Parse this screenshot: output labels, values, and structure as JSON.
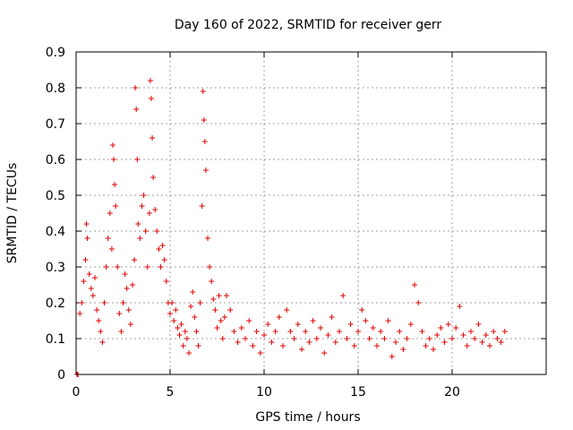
{
  "chart_data": {
    "type": "scatter",
    "title": "Day 160 of 2022, SRMTID for receiver gerr",
    "xlabel": "GPS time / hours",
    "ylabel": "SRMTID / TECUs",
    "xlim": [
      0,
      25
    ],
    "ylim": [
      0,
      0.9
    ],
    "xticks": [
      0,
      5,
      10,
      15,
      20
    ],
    "xtick_labels": [
      "0",
      "5",
      "10",
      "15",
      "20"
    ],
    "yticks": [
      0,
      0.1,
      0.2,
      0.3,
      0.4,
      0.5,
      0.6,
      0.7,
      0.8,
      0.9
    ],
    "ytick_labels": [
      "0",
      "0.1",
      "0.2",
      "0.3",
      "0.4",
      "0.5",
      "0.6",
      "0.7",
      "0.8",
      "0.9"
    ],
    "grid": true,
    "marker": "+",
    "color": "#e00000",
    "series": [
      {
        "name": "SRMTID",
        "points": [
          [
            0.05,
            0.0
          ],
          [
            0.1,
            0.0
          ],
          [
            0.2,
            0.17
          ],
          [
            0.3,
            0.2
          ],
          [
            0.4,
            0.26
          ],
          [
            0.5,
            0.32
          ],
          [
            0.55,
            0.42
          ],
          [
            0.6,
            0.38
          ],
          [
            0.7,
            0.28
          ],
          [
            0.8,
            0.24
          ],
          [
            0.9,
            0.22
          ],
          [
            1.0,
            0.27
          ],
          [
            1.1,
            0.18
          ],
          [
            1.2,
            0.15
          ],
          [
            1.3,
            0.12
          ],
          [
            1.4,
            0.09
          ],
          [
            1.5,
            0.2
          ],
          [
            1.6,
            0.3
          ],
          [
            1.7,
            0.38
          ],
          [
            1.8,
            0.45
          ],
          [
            1.9,
            0.35
          ],
          [
            1.95,
            0.64
          ],
          [
            2.0,
            0.6
          ],
          [
            2.05,
            0.53
          ],
          [
            2.1,
            0.47
          ],
          [
            2.2,
            0.3
          ],
          [
            2.3,
            0.17
          ],
          [
            2.4,
            0.12
          ],
          [
            2.5,
            0.2
          ],
          [
            2.6,
            0.28
          ],
          [
            2.7,
            0.24
          ],
          [
            2.8,
            0.18
          ],
          [
            2.9,
            0.14
          ],
          [
            3.0,
            0.25
          ],
          [
            3.1,
            0.32
          ],
          [
            3.15,
            0.8
          ],
          [
            3.2,
            0.74
          ],
          [
            3.25,
            0.6
          ],
          [
            3.3,
            0.42
          ],
          [
            3.4,
            0.38
          ],
          [
            3.5,
            0.47
          ],
          [
            3.6,
            0.5
          ],
          [
            3.7,
            0.4
          ],
          [
            3.8,
            0.3
          ],
          [
            3.9,
            0.45
          ],
          [
            3.95,
            0.82
          ],
          [
            4.0,
            0.77
          ],
          [
            4.05,
            0.66
          ],
          [
            4.1,
            0.55
          ],
          [
            4.2,
            0.46
          ],
          [
            4.3,
            0.4
          ],
          [
            4.4,
            0.35
          ],
          [
            4.5,
            0.3
          ],
          [
            4.6,
            0.36
          ],
          [
            4.7,
            0.32
          ],
          [
            4.8,
            0.26
          ],
          [
            4.9,
            0.2
          ],
          [
            5.0,
            0.17
          ],
          [
            5.1,
            0.2
          ],
          [
            5.2,
            0.15
          ],
          [
            5.3,
            0.18
          ],
          [
            5.4,
            0.13
          ],
          [
            5.5,
            0.11
          ],
          [
            5.6,
            0.14
          ],
          [
            5.7,
            0.08
          ],
          [
            5.8,
            0.12
          ],
          [
            5.9,
            0.1
          ],
          [
            6.0,
            0.06
          ],
          [
            6.1,
            0.19
          ],
          [
            6.2,
            0.23
          ],
          [
            6.3,
            0.16
          ],
          [
            6.4,
            0.12
          ],
          [
            6.5,
            0.08
          ],
          [
            6.6,
            0.2
          ],
          [
            6.7,
            0.47
          ],
          [
            6.75,
            0.79
          ],
          [
            6.8,
            0.71
          ],
          [
            6.85,
            0.65
          ],
          [
            6.9,
            0.57
          ],
          [
            7.0,
            0.38
          ],
          [
            7.1,
            0.3
          ],
          [
            7.2,
            0.26
          ],
          [
            7.3,
            0.21
          ],
          [
            7.4,
            0.18
          ],
          [
            7.5,
            0.13
          ],
          [
            7.6,
            0.22
          ],
          [
            7.7,
            0.15
          ],
          [
            7.8,
            0.1
          ],
          [
            7.9,
            0.16
          ],
          [
            8.0,
            0.22
          ],
          [
            8.2,
            0.18
          ],
          [
            8.4,
            0.12
          ],
          [
            8.6,
            0.09
          ],
          [
            8.8,
            0.13
          ],
          [
            9.0,
            0.1
          ],
          [
            9.2,
            0.15
          ],
          [
            9.4,
            0.08
          ],
          [
            9.6,
            0.12
          ],
          [
            9.8,
            0.06
          ],
          [
            10.0,
            0.11
          ],
          [
            10.2,
            0.14
          ],
          [
            10.4,
            0.09
          ],
          [
            10.6,
            0.12
          ],
          [
            10.8,
            0.16
          ],
          [
            11.0,
            0.08
          ],
          [
            11.2,
            0.18
          ],
          [
            11.4,
            0.12
          ],
          [
            11.6,
            0.1
          ],
          [
            11.8,
            0.14
          ],
          [
            12.0,
            0.07
          ],
          [
            12.2,
            0.12
          ],
          [
            12.4,
            0.09
          ],
          [
            12.6,
            0.15
          ],
          [
            12.8,
            0.1
          ],
          [
            13.0,
            0.13
          ],
          [
            13.2,
            0.06
          ],
          [
            13.4,
            0.11
          ],
          [
            13.6,
            0.16
          ],
          [
            13.8,
            0.09
          ],
          [
            14.0,
            0.12
          ],
          [
            14.2,
            0.22
          ],
          [
            14.4,
            0.1
          ],
          [
            14.6,
            0.14
          ],
          [
            14.8,
            0.08
          ],
          [
            15.0,
            0.12
          ],
          [
            15.2,
            0.18
          ],
          [
            15.4,
            0.15
          ],
          [
            15.6,
            0.1
          ],
          [
            15.8,
            0.13
          ],
          [
            16.0,
            0.08
          ],
          [
            16.2,
            0.12
          ],
          [
            16.4,
            0.1
          ],
          [
            16.6,
            0.15
          ],
          [
            16.8,
            0.05
          ],
          [
            17.0,
            0.09
          ],
          [
            17.2,
            0.12
          ],
          [
            17.4,
            0.07
          ],
          [
            17.6,
            0.1
          ],
          [
            17.8,
            0.14
          ],
          [
            18.0,
            0.25
          ],
          [
            18.2,
            0.2
          ],
          [
            18.4,
            0.12
          ],
          [
            18.6,
            0.08
          ],
          [
            18.8,
            0.1
          ],
          [
            19.0,
            0.07
          ],
          [
            19.2,
            0.11
          ],
          [
            19.4,
            0.13
          ],
          [
            19.6,
            0.09
          ],
          [
            19.8,
            0.14
          ],
          [
            20.0,
            0.1
          ],
          [
            20.2,
            0.13
          ],
          [
            20.4,
            0.19
          ],
          [
            20.6,
            0.11
          ],
          [
            20.8,
            0.08
          ],
          [
            21.0,
            0.12
          ],
          [
            21.2,
            0.1
          ],
          [
            21.4,
            0.14
          ],
          [
            21.6,
            0.09
          ],
          [
            21.8,
            0.11
          ],
          [
            22.0,
            0.08
          ],
          [
            22.2,
            0.12
          ],
          [
            22.4,
            0.1
          ],
          [
            22.6,
            0.09
          ],
          [
            22.8,
            0.12
          ]
        ]
      }
    ]
  }
}
